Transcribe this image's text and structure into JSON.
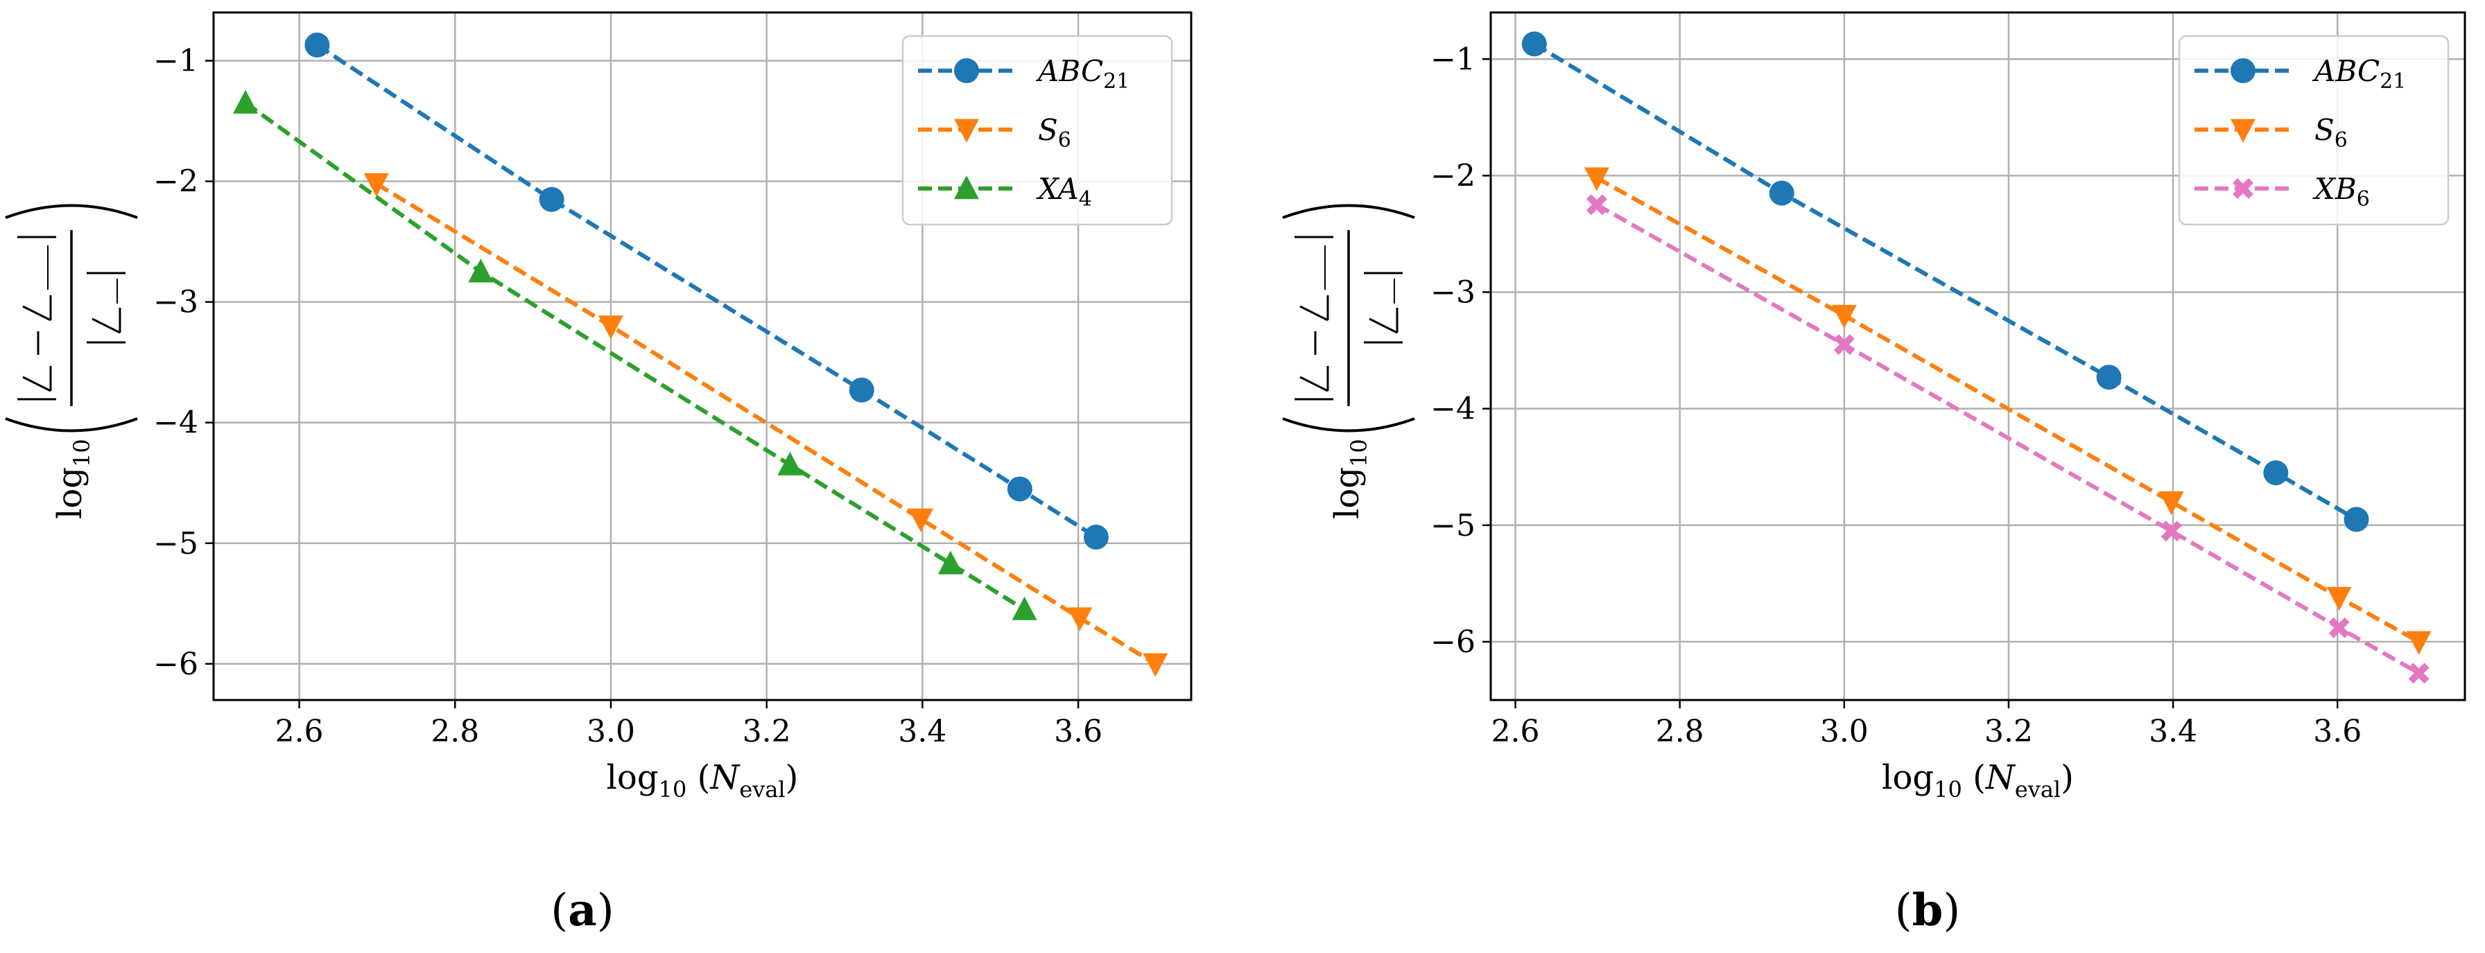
{
  "figure": {
    "captions": [
      "(a)",
      "(b)"
    ]
  },
  "chart_data": [
    {
      "type": "line",
      "panel": "(a)",
      "xlabel_parts": {
        "fn": "log",
        "fn_sub": "10",
        "var": "N",
        "var_sub": "eval"
      },
      "ylabel_parts": {
        "fn": "log",
        "fn_sub": "10"
      },
      "xlim": [
        2.49,
        3.745
      ],
      "ylim": [
        -6.3,
        -0.6
      ],
      "xticks": [
        2.6,
        2.8,
        3.0,
        3.2,
        3.4,
        3.6
      ],
      "xtick_labels": [
        "2.6",
        "2.8",
        "3.0",
        "3.2",
        "3.4",
        "3.6"
      ],
      "yticks": [
        -1,
        -2,
        -3,
        -4,
        -5,
        -6
      ],
      "ytick_labels": [
        "−1",
        "−2",
        "−3",
        "−4",
        "−5",
        "−6"
      ],
      "grid": true,
      "legend_position": "top-right",
      "series": [
        {
          "name": "ABC",
          "name_sub": "21",
          "color": "#1f77b4",
          "marker": "circle",
          "x": [
            2.623,
            2.924,
            3.322,
            3.525,
            3.623
          ],
          "y": [
            -0.87,
            -2.15,
            -3.73,
            -4.55,
            -4.95
          ]
        },
        {
          "name": "S",
          "name_sub": "6",
          "color": "#ff7f0e",
          "marker": "triangle-down",
          "x": [
            2.699,
            3.0,
            3.398,
            3.602,
            3.699
          ],
          "y": [
            -2.02,
            -3.2,
            -4.8,
            -5.62,
            -6.0
          ]
        },
        {
          "name": "XA",
          "name_sub": "4",
          "color": "#2ca02c",
          "marker": "triangle-up",
          "x": [
            2.531,
            2.833,
            3.23,
            3.436,
            3.531
          ],
          "y": [
            -1.35,
            -2.75,
            -4.35,
            -5.17,
            -5.55
          ]
        }
      ]
    },
    {
      "type": "line",
      "panel": "(b)",
      "xlabel_parts": {
        "fn": "log",
        "fn_sub": "10",
        "var": "N",
        "var_sub": "eval"
      },
      "ylabel_parts": {
        "fn": "log",
        "fn_sub": "10"
      },
      "xlim": [
        2.57,
        3.755
      ],
      "ylim": [
        -6.5,
        -0.6
      ],
      "xticks": [
        2.6,
        2.8,
        3.0,
        3.2,
        3.4,
        3.6
      ],
      "xtick_labels": [
        "2.6",
        "2.8",
        "3.0",
        "3.2",
        "3.4",
        "3.6"
      ],
      "yticks": [
        -1,
        -2,
        -3,
        -4,
        -5,
        -6
      ],
      "ytick_labels": [
        "−1",
        "−2",
        "−3",
        "−4",
        "−5",
        "−6"
      ],
      "grid": true,
      "legend_position": "top-right",
      "series": [
        {
          "name": "ABC",
          "name_sub": "21",
          "color": "#1f77b4",
          "marker": "circle",
          "x": [
            2.623,
            2.924,
            3.322,
            3.525,
            3.623
          ],
          "y": [
            -0.87,
            -2.15,
            -3.73,
            -4.55,
            -4.95
          ]
        },
        {
          "name": "S",
          "name_sub": "6",
          "color": "#ff7f0e",
          "marker": "triangle-down",
          "x": [
            2.699,
            3.0,
            3.398,
            3.602,
            3.699
          ],
          "y": [
            -2.02,
            -3.2,
            -4.8,
            -5.62,
            -6.0
          ]
        },
        {
          "name": "XB",
          "name_sub": "6",
          "color": "#e377c2",
          "marker": "x-filled",
          "x": [
            2.699,
            3.0,
            3.398,
            3.602,
            3.699
          ],
          "y": [
            -2.25,
            -3.45,
            -5.05,
            -5.88,
            -6.27
          ]
        }
      ]
    }
  ]
}
